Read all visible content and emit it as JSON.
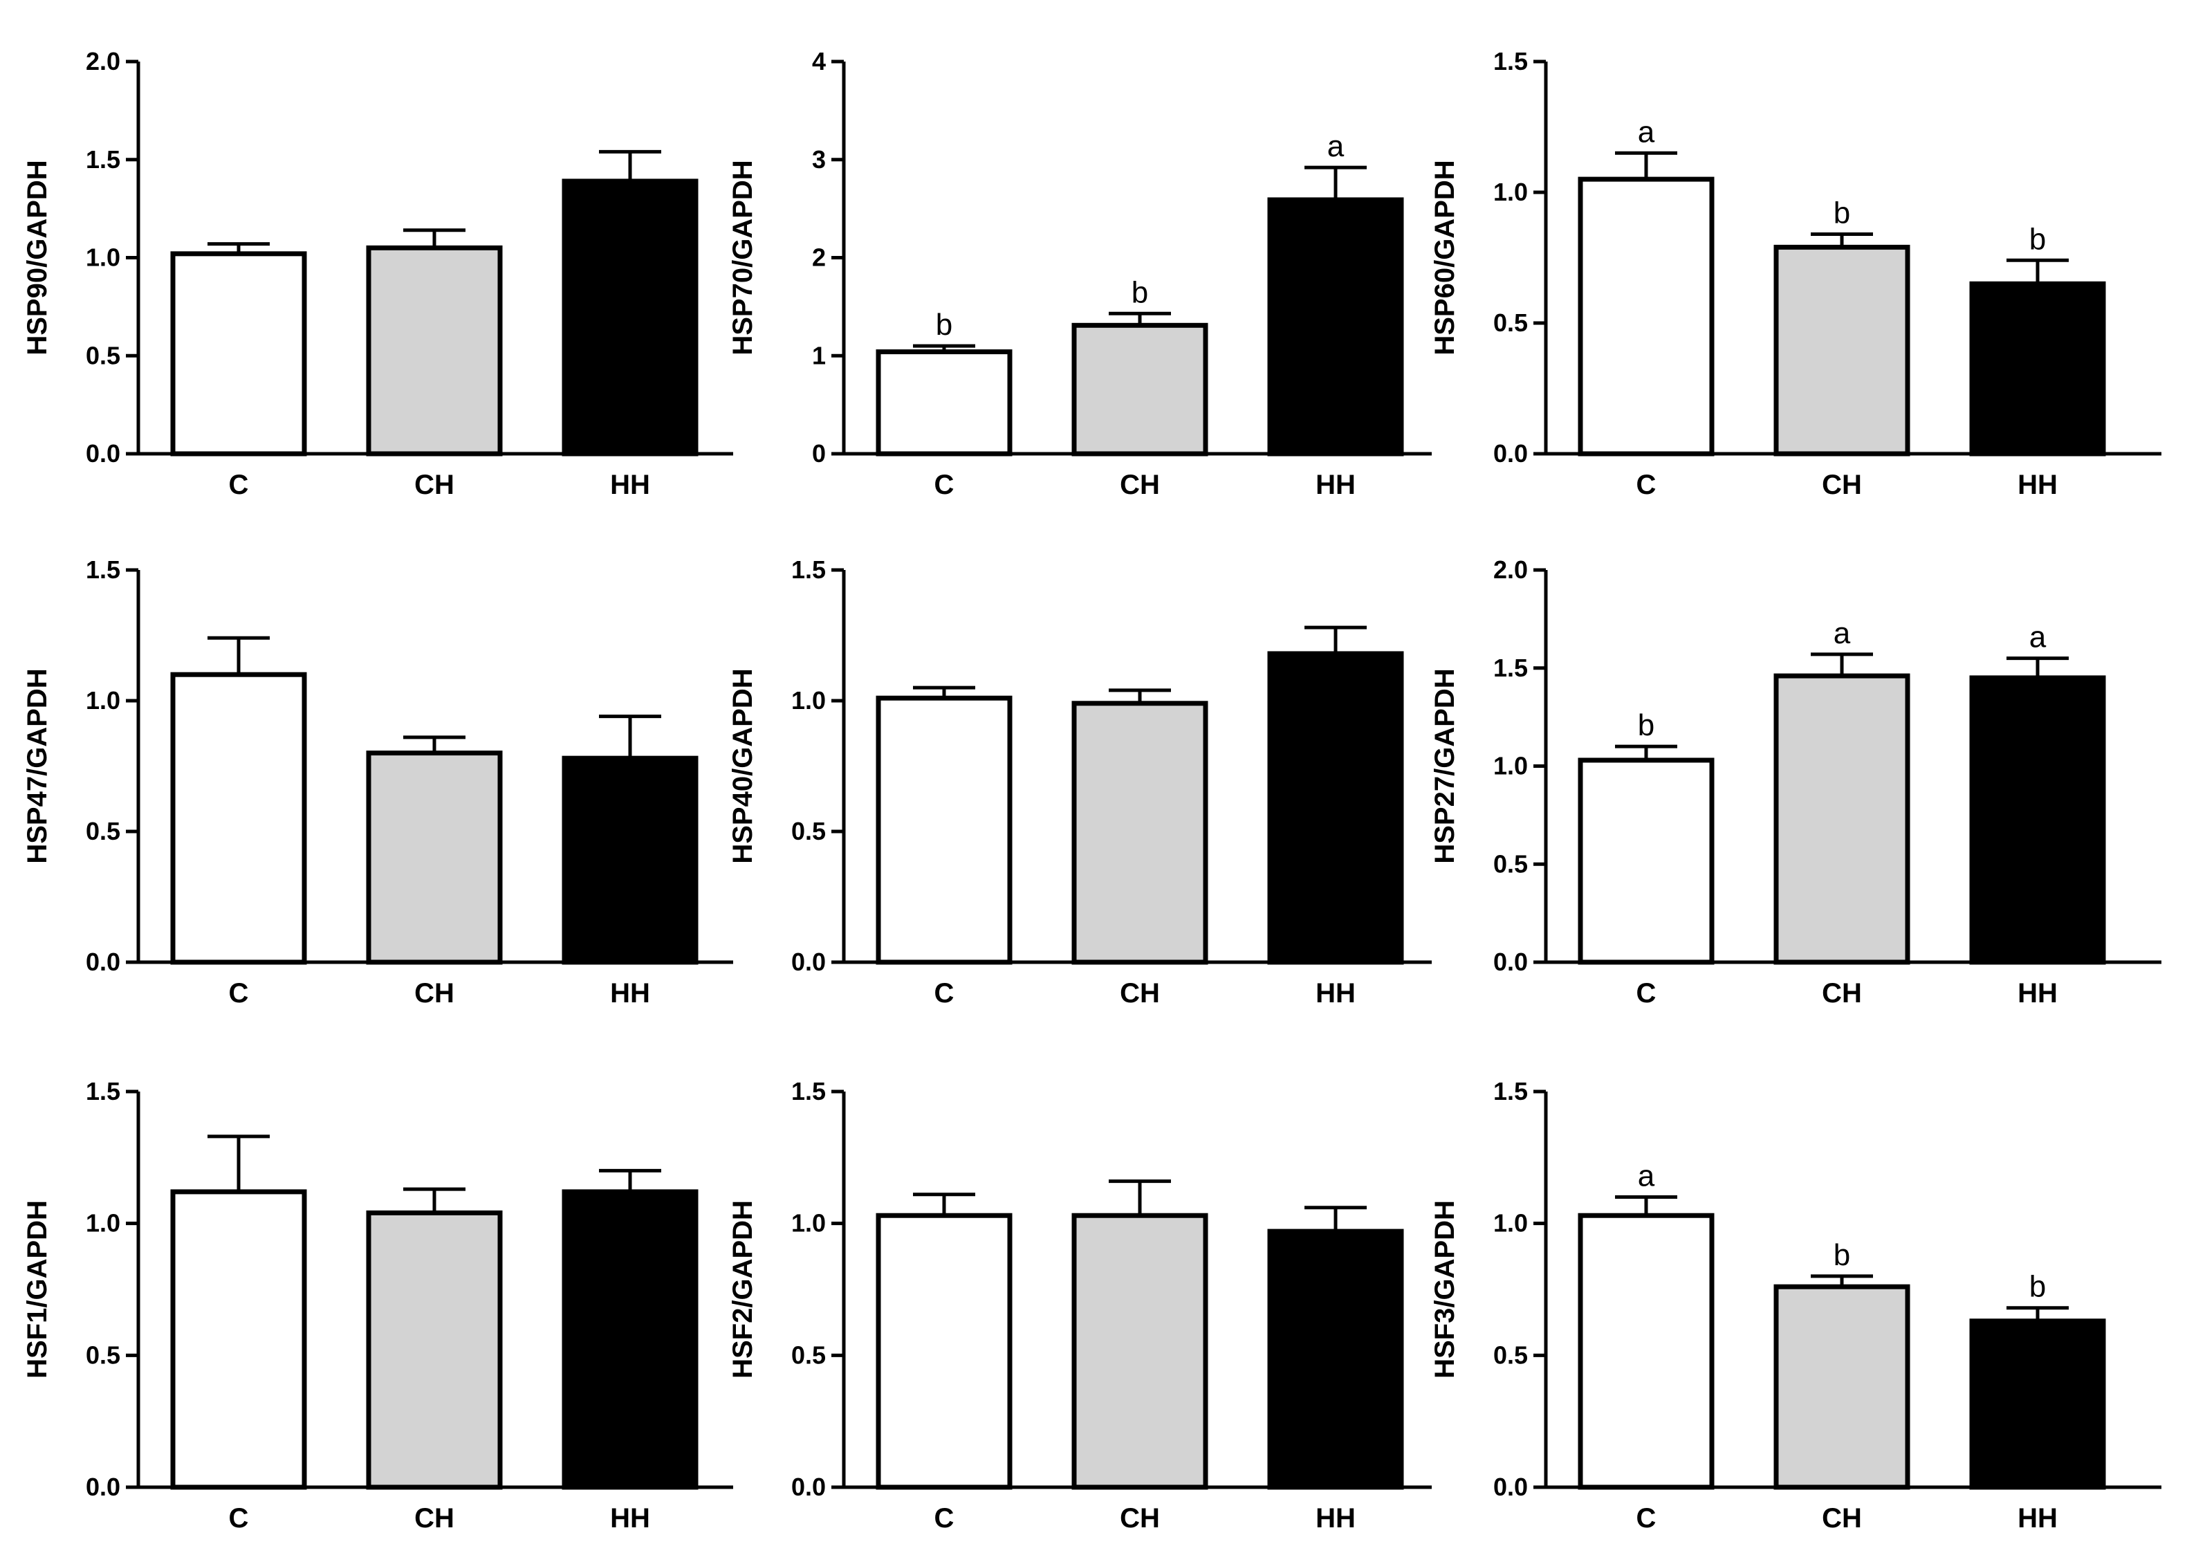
{
  "chart_data": [
    {
      "type": "bar",
      "ylabel": "HSP90/GAPDH",
      "categories": [
        "C",
        "CH",
        "HH"
      ],
      "values": [
        1.02,
        1.05,
        1.39
      ],
      "errors": [
        0.05,
        0.09,
        0.15
      ],
      "significance": [
        "",
        "",
        ""
      ],
      "ylim": [
        0,
        2.0
      ],
      "yticks": [
        "0.0",
        "0.5",
        "1.0",
        "1.5",
        "2.0"
      ],
      "colors": [
        "#ffffff",
        "#d3d3d3",
        "#000000"
      ]
    },
    {
      "type": "bar",
      "ylabel": "HSP70/GAPDH",
      "categories": [
        "C",
        "CH",
        "HH"
      ],
      "values": [
        1.04,
        1.31,
        2.59
      ],
      "errors": [
        0.06,
        0.12,
        0.33
      ],
      "significance": [
        "b",
        "b",
        "a"
      ],
      "ylim": [
        0,
        4
      ],
      "yticks": [
        "0",
        "1",
        "2",
        "3",
        "4"
      ],
      "colors": [
        "#ffffff",
        "#d3d3d3",
        "#000000"
      ]
    },
    {
      "type": "bar",
      "ylabel": "HSP60/GAPDH",
      "categories": [
        "C",
        "CH",
        "HH"
      ],
      "values": [
        1.05,
        0.79,
        0.65
      ],
      "errors": [
        0.1,
        0.05,
        0.09
      ],
      "significance": [
        "a",
        "b",
        "b"
      ],
      "ylim": [
        0,
        1.5
      ],
      "yticks": [
        "0.0",
        "0.5",
        "1.0",
        "1.5"
      ],
      "colors": [
        "#ffffff",
        "#d3d3d3",
        "#000000"
      ]
    },
    {
      "type": "bar",
      "ylabel": "HSP47/GAPDH",
      "categories": [
        "C",
        "CH",
        "HH"
      ],
      "values": [
        1.1,
        0.8,
        0.78
      ],
      "errors": [
        0.14,
        0.06,
        0.16
      ],
      "significance": [
        "",
        "",
        ""
      ],
      "ylim": [
        0,
        1.5
      ],
      "yticks": [
        "0.0",
        "0.5",
        "1.0",
        "1.5"
      ],
      "colors": [
        "#ffffff",
        "#d3d3d3",
        "#000000"
      ]
    },
    {
      "type": "bar",
      "ylabel": "HSP40/GAPDH",
      "categories": [
        "C",
        "CH",
        "HH"
      ],
      "values": [
        1.01,
        0.99,
        1.18
      ],
      "errors": [
        0.04,
        0.05,
        0.1
      ],
      "significance": [
        "",
        "",
        ""
      ],
      "ylim": [
        0,
        1.5
      ],
      "yticks": [
        "0.0",
        "0.5",
        "1.0",
        "1.5"
      ],
      "colors": [
        "#ffffff",
        "#d3d3d3",
        "#000000"
      ]
    },
    {
      "type": "bar",
      "ylabel": "HSP27/GAPDH",
      "categories": [
        "C",
        "CH",
        "HH"
      ],
      "values": [
        1.03,
        1.46,
        1.45
      ],
      "errors": [
        0.07,
        0.11,
        0.1
      ],
      "significance": [
        "b",
        "a",
        "a"
      ],
      "ylim": [
        0,
        2.0
      ],
      "yticks": [
        "0.0",
        "0.5",
        "1.0",
        "1.5",
        "2.0"
      ],
      "colors": [
        "#ffffff",
        "#d3d3d3",
        "#000000"
      ]
    },
    {
      "type": "bar",
      "ylabel": "HSF1/GAPDH",
      "categories": [
        "C",
        "CH",
        "HH"
      ],
      "values": [
        1.12,
        1.04,
        1.12
      ],
      "errors": [
        0.21,
        0.09,
        0.08
      ],
      "significance": [
        "",
        "",
        ""
      ],
      "ylim": [
        0,
        1.5
      ],
      "yticks": [
        "0.0",
        "0.5",
        "1.0",
        "1.5"
      ],
      "colors": [
        "#ffffff",
        "#d3d3d3",
        "#000000"
      ]
    },
    {
      "type": "bar",
      "ylabel": "HSF2/GAPDH",
      "categories": [
        "C",
        "CH",
        "HH"
      ],
      "values": [
        1.03,
        1.03,
        0.97
      ],
      "errors": [
        0.08,
        0.13,
        0.09
      ],
      "significance": [
        "",
        "",
        ""
      ],
      "ylim": [
        0,
        1.5
      ],
      "yticks": [
        "0.0",
        "0.5",
        "1.0",
        "1.5"
      ],
      "colors": [
        "#ffffff",
        "#d3d3d3",
        "#000000"
      ]
    },
    {
      "type": "bar",
      "ylabel": "HSF3/GAPDH",
      "categories": [
        "C",
        "CH",
        "HH"
      ],
      "values": [
        1.03,
        0.76,
        0.63
      ],
      "errors": [
        0.07,
        0.04,
        0.05
      ],
      "significance": [
        "a",
        "b",
        "b"
      ],
      "ylim": [
        0,
        1.5
      ],
      "yticks": [
        "0.0",
        "0.5",
        "1.0",
        "1.5"
      ],
      "colors": [
        "#ffffff",
        "#d3d3d3",
        "#000000"
      ]
    }
  ]
}
